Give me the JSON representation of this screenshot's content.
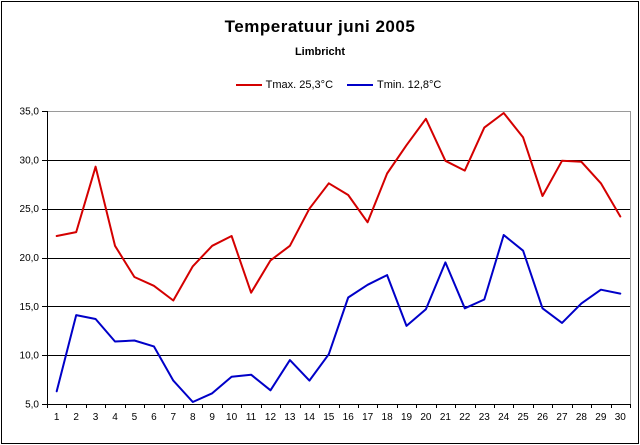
{
  "window": {
    "background": "#ffffff",
    "border_color": "#000000",
    "plot_border_color": "#9a9a9a",
    "axis_color": "#000000"
  },
  "chart_data": {
    "type": "line",
    "title": "Temperatuur juni 2005",
    "subtitle": "Limbricht",
    "xlabel": "",
    "ylabel": "",
    "x": [
      1,
      2,
      3,
      4,
      5,
      6,
      7,
      8,
      9,
      10,
      11,
      12,
      13,
      14,
      15,
      16,
      17,
      18,
      19,
      20,
      21,
      22,
      23,
      24,
      25,
      26,
      27,
      28,
      29,
      30
    ],
    "ylim": [
      5,
      35
    ],
    "y_tick_values": [
      5,
      10,
      15,
      20,
      25,
      30,
      35
    ],
    "y_tick_labels": [
      "5,0",
      "10,0",
      "15,0",
      "20,0",
      "25,0",
      "30,0",
      "35,0"
    ],
    "grid": true,
    "legend_position": "top-center",
    "series": [
      {
        "name": "Tmax. 25,3°C",
        "color": "#d40000",
        "values": [
          22.2,
          22.6,
          29.3,
          21.2,
          18.0,
          17.1,
          15.6,
          19.1,
          21.2,
          22.2,
          16.4,
          19.7,
          21.2,
          25.0,
          27.6,
          26.4,
          23.6,
          28.6,
          31.5,
          34.2,
          29.9,
          28.9,
          33.3,
          34.8,
          32.3,
          26.3,
          29.9,
          29.8,
          27.6,
          24.2
        ]
      },
      {
        "name": "Tmin. 12,8°C",
        "color": "#0000c8",
        "values": [
          6.3,
          14.1,
          13.7,
          11.4,
          11.5,
          10.9,
          7.4,
          5.2,
          6.1,
          7.8,
          8.0,
          6.4,
          9.5,
          7.4,
          10.1,
          15.9,
          17.2,
          18.2,
          13.0,
          14.7,
          19.5,
          14.8,
          15.7,
          22.3,
          20.7,
          14.8,
          13.3,
          15.3,
          16.7,
          16.3
        ]
      }
    ]
  }
}
